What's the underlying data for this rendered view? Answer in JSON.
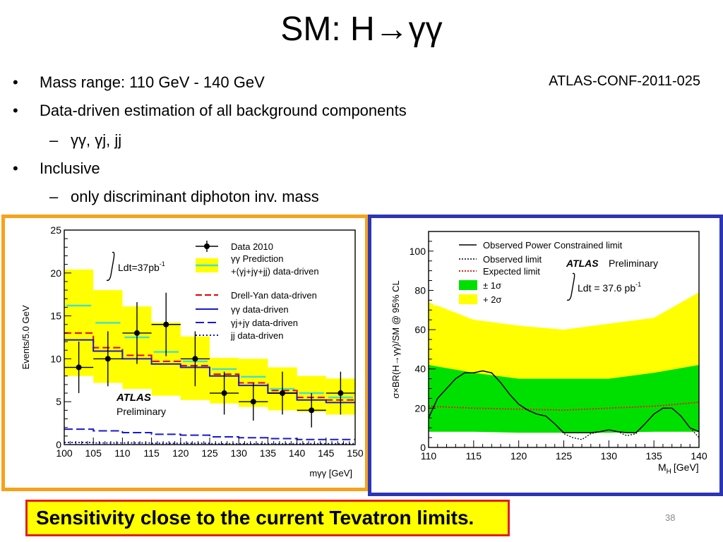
{
  "slide": {
    "title": "SM: H→γγ",
    "reference": "ATLAS-CONF-2011-025",
    "page_number": "38",
    "conclusion": "Sensitivity close to the current Tevatron limits."
  },
  "bullets": [
    {
      "level": 1,
      "marker": "•",
      "text": "Mass range: 110 GeV - 140 GeV"
    },
    {
      "level": 1,
      "marker": "•",
      "text": "Data-driven estimation of all background components"
    },
    {
      "level": 2,
      "marker": "–",
      "text": "γγ, γj, jj"
    },
    {
      "level": 1,
      "marker": "•",
      "text": "Inclusive"
    },
    {
      "level": 2,
      "marker": "–",
      "text": "only discriminant diphoton inv. mass"
    }
  ],
  "colors": {
    "left_frame": "#f7a21b",
    "right_frame": "#2b35b5",
    "highlight_bg": "#ffff00",
    "highlight_border": "#e31e1e"
  },
  "chart_data": [
    {
      "type": "bar",
      "ylabel": "Events/5.0 GeV",
      "xlabel": "mγγ [GeV]",
      "xlim": [
        100,
        150
      ],
      "ylim": [
        0,
        25
      ],
      "x_ticks": [
        100,
        105,
        110,
        115,
        120,
        125,
        130,
        135,
        140,
        145,
        150
      ],
      "y_ticks": [
        0,
        5,
        10,
        15,
        20,
        25
      ],
      "bin_edges": [
        100,
        105,
        110,
        115,
        120,
        125,
        130,
        135,
        140,
        145,
        150
      ],
      "legend_labels": {
        "data": "Data 2010",
        "prediction_line1": "γγ Prediction",
        "prediction_line2": "+(γj+jγ+jj) data-driven",
        "drell_yan": "Drell-Yan data-driven",
        "gg": "γγ data-driven",
        "gj": "γj+jγ data-driven",
        "jj": "jj data-driven"
      },
      "annotation_lumi": "Ldt=37pb",
      "annotation_lumi_sup": "-1",
      "atlas_label": "ATLAS",
      "prelim_label": "Preliminary",
      "series": [
        {
          "name": "Data 2010",
          "kind": "points",
          "x": [
            102.5,
            107.5,
            112.5,
            117.5,
            122.5,
            127.5,
            132.5,
            137.5,
            142.5,
            147.5
          ],
          "values": [
            9,
            10,
            13,
            14,
            10,
            6,
            5,
            6,
            4,
            6
          ],
          "err": [
            3,
            3.2,
            3.6,
            3.7,
            3.2,
            2.5,
            2.2,
            2.5,
            2,
            2.5
          ]
        },
        {
          "name": "γγ Prediction +(γj+jγ+jj) data-driven",
          "kind": "band",
          "center": [
            16.2,
            14.2,
            12.5,
            10.8,
            9.7,
            8.8,
            7.9,
            6.5,
            6.0,
            5.5
          ],
          "low": [
            8.0,
            7.2,
            6.5,
            5.7,
            5.2,
            4.8,
            4.4,
            4.0,
            3.8,
            3.5
          ],
          "high": [
            20.4,
            18.0,
            16.1,
            14.2,
            12.6,
            10.1,
            10.0,
            9.0,
            8.0,
            7.7
          ]
        },
        {
          "name": "Drell-Yan data-driven",
          "kind": "hist",
          "values": [
            13.0,
            11.3,
            10.4,
            9.7,
            9.2,
            8.2,
            7.2,
            6.3,
            5.5,
            5.2
          ]
        },
        {
          "name": "γγ data-driven",
          "kind": "hist",
          "values": [
            12.2,
            10.9,
            10.0,
            9.4,
            9.0,
            8.0,
            6.9,
            6.0,
            5.2,
            4.9
          ]
        },
        {
          "name": "γj+jγ data-driven",
          "kind": "hist",
          "values": [
            1.8,
            1.6,
            1.4,
            1.2,
            1.1,
            0.9,
            0.8,
            0.7,
            0.6,
            0.6
          ]
        },
        {
          "name": "jj data-driven",
          "kind": "hist",
          "values": [
            0.25,
            0.2,
            0.2,
            0.15,
            0.15,
            0.1,
            0.1,
            0.1,
            0.1,
            0.1
          ]
        }
      ]
    },
    {
      "type": "line",
      "ylabel": "σ×BR(H→γγ)/SM @ 95% CL",
      "xlabel": "M",
      "xlabel_sub": "H",
      "xlabel_unit": "[GeV]",
      "xlim": [
        110,
        140
      ],
      "ylim": [
        0,
        110
      ],
      "x_ticks": [
        110,
        115,
        120,
        125,
        130,
        135,
        140
      ],
      "y_ticks": [
        0,
        20,
        40,
        60,
        80,
        100
      ],
      "atlas_label": "ATLAS",
      "prelim_label": "Preliminary",
      "annotation_lumi": "Ldt = 37.6 pb",
      "annotation_lumi_sup": "-1",
      "legend_labels": {
        "pcl": "Observed Power Constrained limit",
        "observed": "Observed limit",
        "expected": "Expected limit",
        "one_sigma": "± 1σ",
        "two_sigma": "+ 2σ"
      },
      "x": [
        110,
        115,
        120,
        125,
        130,
        135,
        140
      ],
      "band_2sigma_high": [
        74,
        65,
        62,
        60,
        63,
        66,
        79
      ],
      "band_1sigma_high": [
        42,
        38,
        35,
        35,
        35,
        38,
        42
      ],
      "band_1sigma_low": [
        8,
        8,
        7.5,
        7.5,
        7.5,
        8,
        8
      ],
      "expected": [
        21,
        20,
        19.5,
        19,
        20,
        21,
        23
      ],
      "observed_x": [
        110,
        111,
        112,
        113,
        114,
        115,
        116,
        117,
        118,
        119,
        120,
        121,
        122,
        123,
        124,
        125,
        126,
        127,
        128,
        129,
        130,
        131,
        132,
        133,
        134,
        135,
        136,
        137,
        138,
        139,
        140
      ],
      "observed_y": [
        15,
        25,
        30,
        35,
        38,
        38,
        39,
        38,
        33,
        27,
        22,
        19,
        17,
        16,
        12,
        7,
        5,
        4,
        7,
        8,
        9,
        8,
        6,
        7,
        12,
        17,
        20,
        20,
        16,
        10,
        5
      ],
      "pcl_y": [
        15,
        25,
        30,
        35,
        38,
        38,
        39,
        38,
        33,
        27,
        22,
        19,
        17,
        16,
        12,
        7.5,
        7.5,
        7.5,
        7.5,
        8,
        9,
        8,
        7.5,
        7.5,
        12,
        17,
        20,
        20,
        16,
        10,
        8
      ]
    }
  ]
}
